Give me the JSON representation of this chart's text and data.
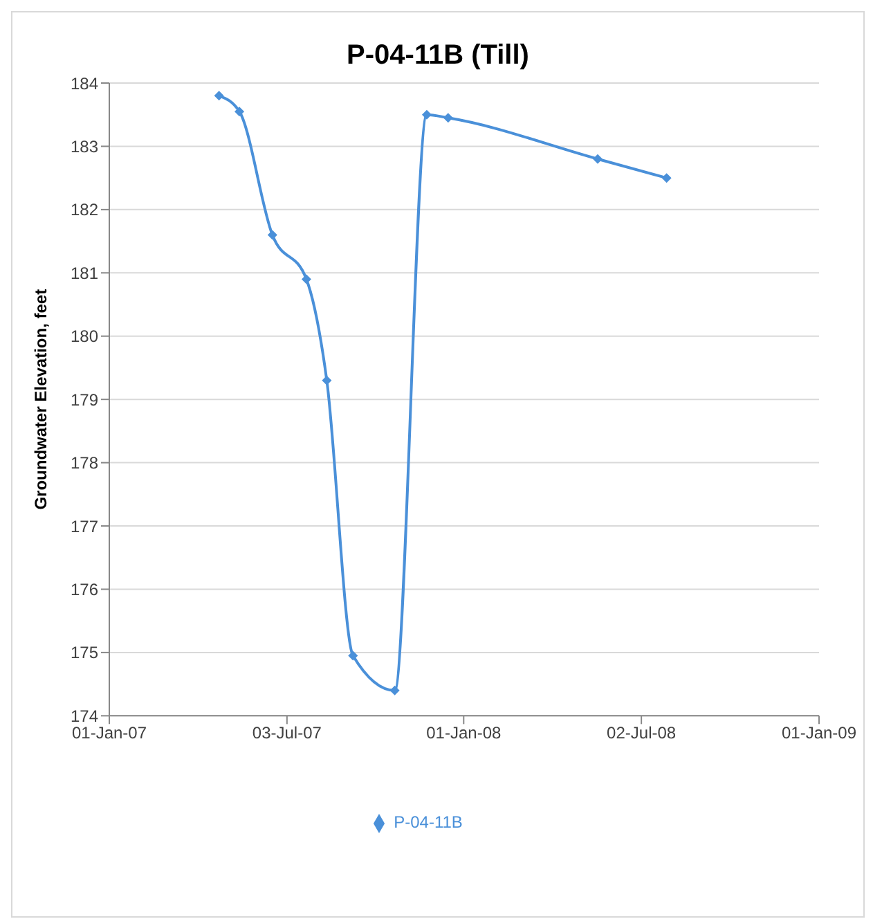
{
  "chart_data": {
    "type": "line",
    "title": "P-04-11B (Till)",
    "ylabel": "Groundwater Elevation, feet",
    "x": [
      "2007-04-24",
      "2007-05-15",
      "2007-06-18",
      "2007-07-23",
      "2007-08-13",
      "2007-09-09",
      "2007-10-22",
      "2007-11-24",
      "2007-12-16",
      "2008-05-18",
      "2008-07-28"
    ],
    "series": [
      {
        "name": "P-04-11B",
        "color": "#4a90d9",
        "values": [
          183.8,
          183.55,
          181.6,
          180.9,
          179.3,
          174.95,
          174.4,
          183.5,
          183.45,
          182.8,
          182.5
        ]
      }
    ],
    "xlim": [
      "2007-01-01",
      "2009-01-01"
    ],
    "xticks": [
      {
        "value": "2007-01-01",
        "label": "01-Jan-07"
      },
      {
        "value": "2007-07-03",
        "label": "03-Jul-07"
      },
      {
        "value": "2008-01-01",
        "label": "01-Jan-08"
      },
      {
        "value": "2008-07-02",
        "label": "02-Jul-08"
      },
      {
        "value": "2009-01-01",
        "label": "01-Jan-09"
      }
    ],
    "ylim": [
      174,
      184
    ],
    "yticks": [
      174,
      175,
      176,
      177,
      178,
      179,
      180,
      181,
      182,
      183,
      184
    ],
    "grid": "y",
    "legend": "bottom",
    "marker": "diamond",
    "line_style": "solid"
  }
}
